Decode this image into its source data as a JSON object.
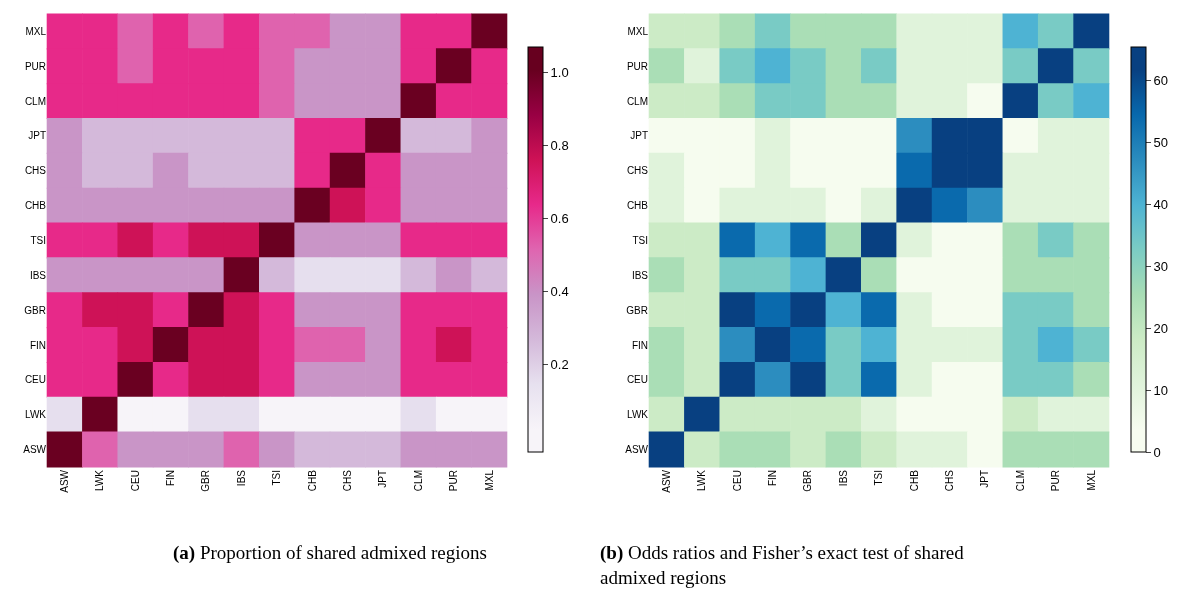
{
  "chart_data": [
    {
      "type": "heatmap",
      "title": "(a) Proportion of shared admixed regions",
      "categories": [
        "ASW",
        "LWK",
        "CEU",
        "FIN",
        "GBR",
        "IBS",
        "TSI",
        "CHB",
        "CHS",
        "JPT",
        "CLM",
        "PUR",
        "MXL"
      ],
      "y_categories": [
        "MXL",
        "PUR",
        "CLM",
        "JPT",
        "CHS",
        "CHB",
        "TSI",
        "IBS",
        "GBR",
        "FIN",
        "CEU",
        "LWK",
        "ASW"
      ],
      "cells": [
        [
          0.64,
          0.64,
          0.52,
          0.64,
          0.52,
          0.64,
          0.52,
          0.52,
          0.39,
          0.39,
          0.64,
          0.64,
          1.0
        ],
        [
          0.64,
          0.64,
          0.52,
          0.64,
          0.64,
          0.64,
          0.52,
          0.39,
          0.39,
          0.39,
          0.64,
          1.0,
          0.64
        ],
        [
          0.64,
          0.64,
          0.64,
          0.64,
          0.64,
          0.64,
          0.52,
          0.39,
          0.39,
          0.39,
          1.0,
          0.64,
          0.64
        ],
        [
          0.39,
          0.27,
          0.27,
          0.27,
          0.27,
          0.27,
          0.27,
          0.64,
          0.64,
          1.0,
          0.27,
          0.27,
          0.39
        ],
        [
          0.39,
          0.27,
          0.27,
          0.39,
          0.27,
          0.27,
          0.27,
          0.64,
          1.0,
          0.64,
          0.39,
          0.39,
          0.39
        ],
        [
          0.39,
          0.39,
          0.39,
          0.39,
          0.39,
          0.39,
          0.39,
          1.0,
          0.76,
          0.64,
          0.39,
          0.39,
          0.39
        ],
        [
          0.64,
          0.64,
          0.76,
          0.64,
          0.76,
          0.76,
          1.0,
          0.39,
          0.39,
          0.39,
          0.64,
          0.64,
          0.64
        ],
        [
          0.39,
          0.39,
          0.39,
          0.39,
          0.39,
          1.0,
          0.27,
          0.15,
          0.15,
          0.15,
          0.27,
          0.39,
          0.27
        ],
        [
          0.64,
          0.76,
          0.76,
          0.64,
          1.0,
          0.76,
          0.64,
          0.39,
          0.39,
          0.39,
          0.64,
          0.64,
          0.64
        ],
        [
          0.64,
          0.64,
          0.76,
          1.0,
          0.76,
          0.76,
          0.64,
          0.52,
          0.52,
          0.39,
          0.64,
          0.76,
          0.64
        ],
        [
          0.64,
          0.64,
          1.0,
          0.64,
          0.76,
          0.76,
          0.64,
          0.39,
          0.39,
          0.39,
          0.64,
          0.64,
          0.64
        ],
        [
          0.15,
          1.0,
          0.02,
          0.02,
          0.15,
          0.15,
          0.02,
          0.02,
          0.02,
          0.02,
          0.15,
          0.02,
          0.02
        ],
        [
          1.0,
          0.52,
          0.39,
          0.39,
          0.39,
          0.52,
          0.39,
          0.27,
          0.27,
          0.27,
          0.39,
          0.39,
          0.39
        ]
      ],
      "colors": [
        "#f7f4f9",
        "#e7e1ef",
        "#d4b9da",
        "#c994c7",
        "#df65b0",
        "#e7298a",
        "#ce1256",
        "#980043",
        "#67001f"
      ],
      "clim": [
        -0.04,
        1.07
      ],
      "cticks": [
        {
          "value": 0.2,
          "label": "0.2"
        },
        {
          "value": 0.4,
          "label": "0.4"
        },
        {
          "value": 0.6,
          "label": "0.6"
        },
        {
          "value": 0.8,
          "label": "0.8"
        },
        {
          "value": 1.0,
          "label": "1.0"
        }
      ]
    },
    {
      "type": "heatmap",
      "title": "(b) Odds ratios and Fisher’s exact test of shared admixed regions",
      "categories": [
        "ASW",
        "LWK",
        "CEU",
        "FIN",
        "GBR",
        "IBS",
        "TSI",
        "CHB",
        "CHS",
        "JPT",
        "CLM",
        "PUR",
        "MXL"
      ],
      "y_categories": [
        "MXL",
        "PUR",
        "CLM",
        "JPT",
        "CHS",
        "CHB",
        "TSI",
        "IBS",
        "GBR",
        "FIN",
        "CEU",
        "LWK",
        "ASW"
      ],
      "cells": [
        [
          18,
          18,
          25,
          33,
          25,
          25,
          25,
          11,
          11,
          11,
          40,
          33,
          62
        ],
        [
          25,
          11,
          33,
          40,
          33,
          25,
          33,
          11,
          11,
          11,
          33,
          62,
          33
        ],
        [
          18,
          18,
          25,
          33,
          33,
          25,
          25,
          11,
          11,
          4,
          62,
          33,
          40
        ],
        [
          4,
          4,
          4,
          11,
          4,
          4,
          4,
          47,
          62,
          62,
          4,
          11,
          11
        ],
        [
          11,
          4,
          4,
          11,
          4,
          4,
          4,
          54,
          62,
          62,
          11,
          11,
          11
        ],
        [
          11,
          4,
          11,
          11,
          11,
          4,
          11,
          62,
          54,
          47,
          11,
          11,
          11
        ],
        [
          18,
          18,
          54,
          40,
          54,
          25,
          62,
          11,
          4,
          4,
          25,
          33,
          25
        ],
        [
          25,
          18,
          33,
          33,
          40,
          62,
          25,
          4,
          4,
          4,
          25,
          25,
          25
        ],
        [
          18,
          18,
          62,
          54,
          62,
          40,
          54,
          11,
          4,
          4,
          33,
          33,
          25
        ],
        [
          25,
          18,
          47,
          62,
          54,
          33,
          40,
          11,
          11,
          11,
          33,
          40,
          33
        ],
        [
          25,
          18,
          62,
          47,
          62,
          33,
          54,
          11,
          4,
          4,
          33,
          33,
          25
        ],
        [
          18,
          62,
          18,
          18,
          18,
          18,
          11,
          4,
          4,
          4,
          18,
          11,
          11
        ],
        [
          62,
          18,
          25,
          25,
          18,
          25,
          18,
          11,
          11,
          4,
          25,
          25,
          25
        ]
      ],
      "colors": [
        "#f7fcf0",
        "#e0f3db",
        "#ccebc5",
        "#a8ddb5",
        "#7bccc4",
        "#4eb3d3",
        "#2b8cbe",
        "#0868ac",
        "#084081"
      ],
      "clim": [
        0,
        65.4
      ],
      "cticks": [
        0,
        10,
        20,
        30,
        40,
        50,
        60
      ]
    }
  ]
}
